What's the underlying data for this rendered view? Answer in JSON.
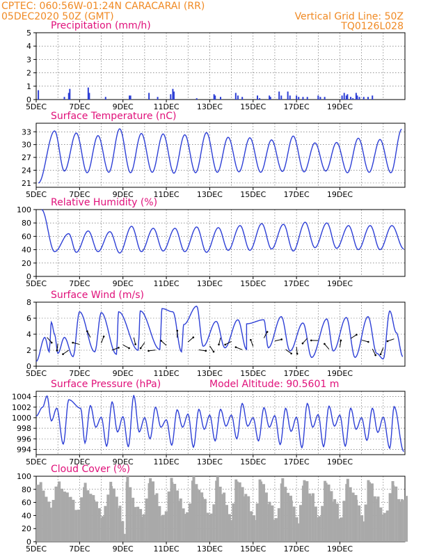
{
  "header": {
    "left_line1": "CPTEC:   060:56W-01:24N   CARACARAI (RR)",
    "left_line2": "05DEC2020 50Z (GMT)",
    "right_line1": "Vertical Grid Line: 50Z",
    "right_line2": "TQ0126L028"
  },
  "colors": {
    "header": "#f08a24",
    "title": "#e0107a",
    "series": "#2d3fd6",
    "cloud": "#a9a9a9"
  },
  "x_labels": [
    "5DEC",
    "7DEC",
    "9DEC",
    "11DEC",
    "13DEC",
    "15DEC",
    "17DEC",
    "19DEC"
  ],
  "chart_data": [
    {
      "id": "precip",
      "type": "bar",
      "title": "Precipitation (mm/h)",
      "ylim": [
        0,
        5
      ],
      "yticks": [
        0,
        1,
        2,
        3,
        4,
        5
      ],
      "points": [
        [
          0.1,
          0.7
        ],
        [
          1.3,
          0.2
        ],
        [
          1.5,
          0.5
        ],
        [
          1.55,
          0.8
        ],
        [
          2.4,
          0.9
        ],
        [
          2.45,
          0.5
        ],
        [
          3.2,
          0.2
        ],
        [
          4.3,
          0.3
        ],
        [
          4.35,
          0.3
        ],
        [
          5.2,
          0.5
        ],
        [
          5.6,
          0.2
        ],
        [
          6.2,
          0.4
        ],
        [
          6.3,
          0.8
        ],
        [
          6.35,
          0.6
        ],
        [
          7.4,
          0.1
        ],
        [
          8.2,
          0.4
        ],
        [
          8.25,
          0.3
        ],
        [
          8.5,
          0.2
        ],
        [
          9.2,
          0.5
        ],
        [
          9.3,
          0.3
        ],
        [
          9.5,
          0.2
        ],
        [
          10.2,
          0.3
        ],
        [
          10.3,
          0.1
        ],
        [
          10.75,
          0.3
        ],
        [
          10.8,
          0.2
        ],
        [
          11.2,
          0.6
        ],
        [
          11.3,
          0.3
        ],
        [
          11.6,
          0.6
        ],
        [
          11.7,
          0.3
        ],
        [
          12.0,
          0.3
        ],
        [
          12.1,
          0.2
        ],
        [
          12.3,
          0.2
        ],
        [
          12.5,
          0.2
        ],
        [
          13.0,
          0.3
        ],
        [
          13.1,
          0.2
        ],
        [
          13.3,
          0.2
        ],
        [
          14.1,
          0.3
        ],
        [
          14.2,
          0.5
        ],
        [
          14.3,
          0.3
        ],
        [
          14.35,
          0.4
        ],
        [
          14.5,
          0.2
        ],
        [
          14.6,
          0.1
        ],
        [
          14.75,
          0.5
        ],
        [
          14.8,
          0.3
        ],
        [
          14.9,
          0.2
        ],
        [
          15.1,
          0.2
        ],
        [
          15.3,
          0.2
        ],
        [
          15.5,
          0.3
        ]
      ],
      "series": [
        {
          "name": "",
          "values": []
        }
      ]
    },
    {
      "id": "temp",
      "type": "line",
      "title": "Surface Temperature (nC)",
      "ylim": [
        20,
        35
      ],
      "yticks": [
        21,
        24,
        27,
        30,
        33
      ],
      "min": [
        [
          0.1,
          21.0
        ],
        [
          1.3,
          23.8
        ],
        [
          2.35,
          23.4
        ],
        [
          3.35,
          23.5
        ],
        [
          4.35,
          23.4
        ],
        [
          5.35,
          23.5
        ],
        [
          6.35,
          23.3
        ],
        [
          7.35,
          23.4
        ],
        [
          8.35,
          23.5
        ],
        [
          9.35,
          23.6
        ],
        [
          10.35,
          23.5
        ],
        [
          11.35,
          23.7
        ],
        [
          12.35,
          23.6
        ],
        [
          13.35,
          23.8
        ],
        [
          14.35,
          23.4
        ],
        [
          15.35,
          23.5
        ],
        [
          16.35,
          23.4
        ]
      ],
      "max": [
        [
          0.85,
          33.2
        ],
        [
          1.85,
          32.7
        ],
        [
          2.85,
          32.1
        ],
        [
          3.85,
          33.7
        ],
        [
          4.85,
          32.6
        ],
        [
          5.85,
          32.5
        ],
        [
          6.85,
          32.3
        ],
        [
          7.85,
          32.8
        ],
        [
          8.85,
          31.7
        ],
        [
          9.85,
          31.6
        ],
        [
          10.85,
          31.1
        ],
        [
          11.85,
          32.0
        ],
        [
          12.85,
          30.4
        ],
        [
          13.85,
          30.5
        ],
        [
          14.85,
          31.5
        ],
        [
          15.85,
          31.2
        ],
        [
          16.85,
          33.6
        ]
      ],
      "series": [
        {
          "name": "",
          "values": []
        }
      ]
    },
    {
      "id": "rh",
      "type": "line",
      "title": "Relative Humidity (%)",
      "ylim": [
        0,
        100
      ],
      "yticks": [
        0,
        20,
        40,
        60,
        80,
        100
      ],
      "min": [
        [
          0.85,
          37
        ],
        [
          1.85,
          36
        ],
        [
          2.85,
          37
        ],
        [
          3.85,
          35
        ],
        [
          4.85,
          37
        ],
        [
          5.85,
          38
        ],
        [
          6.85,
          37
        ],
        [
          7.85,
          36
        ],
        [
          8.85,
          39
        ],
        [
          9.85,
          39
        ],
        [
          10.85,
          41
        ],
        [
          11.85,
          38
        ],
        [
          12.85,
          43
        ],
        [
          13.85,
          42
        ],
        [
          14.85,
          40
        ],
        [
          15.85,
          40
        ],
        [
          16.95,
          41
        ]
      ],
      "max": [
        [
          0.25,
          100
        ],
        [
          1.5,
          64
        ],
        [
          2.4,
          68
        ],
        [
          3.4,
          67
        ],
        [
          4.4,
          75
        ],
        [
          5.4,
          72
        ],
        [
          6.4,
          72
        ],
        [
          7.4,
          74
        ],
        [
          8.4,
          73
        ],
        [
          9.4,
          76
        ],
        [
          10.4,
          79
        ],
        [
          11.4,
          78
        ],
        [
          12.4,
          81
        ],
        [
          13.4,
          80
        ],
        [
          14.4,
          76
        ],
        [
          15.4,
          76
        ],
        [
          16.4,
          76
        ]
      ],
      "series": [
        {
          "name": "",
          "values": []
        }
      ]
    },
    {
      "id": "wind",
      "type": "line",
      "title": "Surface Wind (m/s)",
      "ylim": [
        0,
        8
      ],
      "yticks": [
        0,
        2,
        4,
        6,
        8
      ],
      "min": [
        [
          0.0,
          0.6
        ],
        [
          0.6,
          1.8
        ],
        [
          1.0,
          1.6
        ],
        [
          1.7,
          1.2
        ],
        [
          2.7,
          1.8
        ],
        [
          3.7,
          1.5
        ],
        [
          4.7,
          2.0
        ],
        [
          5.7,
          2.1
        ],
        [
          6.7,
          1.8
        ],
        [
          7.7,
          2.5
        ],
        [
          8.7,
          2.3
        ],
        [
          9.7,
          2.1
        ],
        [
          10.7,
          2.3
        ],
        [
          11.7,
          1.9
        ],
        [
          12.7,
          1.1
        ],
        [
          13.7,
          1.9
        ],
        [
          14.7,
          1.1
        ],
        [
          15.7,
          1.6
        ],
        [
          16.0,
          0.9
        ],
        [
          16.9,
          1.2
        ]
      ],
      "max": [
        [
          0.4,
          3.6
        ],
        [
          0.7,
          5.5
        ],
        [
          0.85,
          4.0
        ],
        [
          1.3,
          3.6
        ],
        [
          2.0,
          6.8
        ],
        [
          3.0,
          6.7
        ],
        [
          3.8,
          6.8
        ],
        [
          4.8,
          6.9
        ],
        [
          5.8,
          7.2
        ],
        [
          6.3,
          6.8
        ],
        [
          6.8,
          5.2
        ],
        [
          7.4,
          7.5
        ],
        [
          8.3,
          5.6
        ],
        [
          9.3,
          5.8
        ],
        [
          9.7,
          5.3
        ],
        [
          10.5,
          5.8
        ],
        [
          11.3,
          6.2
        ],
        [
          12.3,
          5.4
        ],
        [
          13.4,
          5.9
        ],
        [
          14.3,
          6.1
        ],
        [
          15.3,
          6.2
        ],
        [
          16.3,
          6.9
        ],
        [
          16.6,
          4.2
        ]
      ],
      "series": [
        {
          "name": "",
          "values": []
        }
      ]
    },
    {
      "id": "pressure",
      "type": "line",
      "title": "Surface Pressure (hPa)",
      "note": "Model Altitude: 90.5601 m",
      "ylim": [
        993,
        1005
      ],
      "yticks": [
        994,
        996,
        998,
        1000,
        1002,
        1004
      ],
      "min": [
        [
          0.0,
          1000.3
        ],
        [
          0.7,
          999.4
        ],
        [
          1.25,
          995.0
        ],
        [
          2.25,
          995.2
        ],
        [
          2.75,
          998.2
        ],
        [
          3.25,
          994.6
        ],
        [
          3.75,
          997.3
        ],
        [
          4.25,
          994.5
        ],
        [
          4.75,
          997.3
        ],
        [
          5.25,
          996.0
        ],
        [
          5.75,
          998.2
        ],
        [
          6.25,
          994.8
        ],
        [
          6.75,
          998.2
        ],
        [
          7.25,
          994.4
        ],
        [
          7.75,
          997.8
        ],
        [
          8.25,
          995.6
        ],
        [
          8.75,
          998.4
        ],
        [
          9.25,
          996.0
        ],
        [
          9.75,
          998.4
        ],
        [
          10.25,
          995.6
        ],
        [
          10.75,
          998.2
        ],
        [
          11.25,
          994.9
        ],
        [
          11.75,
          997.4
        ],
        [
          12.25,
          994.3
        ],
        [
          12.75,
          998.2
        ],
        [
          13.25,
          994.5
        ],
        [
          13.75,
          998.4
        ],
        [
          14.25,
          994.6
        ],
        [
          14.75,
          997.8
        ],
        [
          15.25,
          995.7
        ],
        [
          15.75,
          997.2
        ],
        [
          16.3,
          994.2
        ],
        [
          16.95,
          993.6
        ]
      ],
      "max": [
        [
          0.3,
          1002.0
        ],
        [
          0.5,
          1004.1
        ],
        [
          0.95,
          1001.8
        ],
        [
          1.5,
          1003.4
        ],
        [
          2.05,
          1001.8
        ],
        [
          2.5,
          1002.3
        ],
        [
          3.0,
          1000.1
        ],
        [
          3.5,
          1003.0
        ],
        [
          4.0,
          1000.2
        ],
        [
          4.5,
          1004.2
        ],
        [
          5.0,
          1000.0
        ],
        [
          5.5,
          1002.0
        ],
        [
          6.0,
          999.6
        ],
        [
          6.5,
          1001.5
        ],
        [
          7.0,
          1000.7
        ],
        [
          7.5,
          1001.6
        ],
        [
          8.0,
          1000.5
        ],
        [
          8.5,
          1001.6
        ],
        [
          9.0,
          1000.5
        ],
        [
          9.5,
          1002.7
        ],
        [
          10.0,
          1000.0
        ],
        [
          10.5,
          1001.9
        ],
        [
          11.0,
          1000.4
        ],
        [
          11.5,
          1001.8
        ],
        [
          12.0,
          1000.1
        ],
        [
          12.5,
          1002.7
        ],
        [
          13.0,
          1000.6
        ],
        [
          13.5,
          1002.2
        ],
        [
          14.0,
          1000.5
        ],
        [
          14.5,
          1001.8
        ],
        [
          15.0,
          1000.0
        ],
        [
          15.5,
          1001.8
        ],
        [
          16.0,
          1000.1
        ],
        [
          16.5,
          1002.1
        ]
      ],
      "series": [
        {
          "name": "",
          "values": []
        }
      ]
    },
    {
      "id": "cloud",
      "type": "bar",
      "title": "Cloud Cover (%)",
      "ylim": [
        0,
        100
      ],
      "yticks": [
        0,
        20,
        40,
        60,
        80,
        100
      ],
      "levels": [
        [
          0.0,
          92
        ],
        [
          0.15,
          88
        ],
        [
          0.6,
          55
        ],
        [
          1.0,
          90
        ],
        [
          1.4,
          72
        ],
        [
          1.9,
          48
        ],
        [
          2.2,
          88
        ],
        [
          2.6,
          68
        ],
        [
          3.0,
          38
        ],
        [
          3.4,
          90
        ],
        [
          3.8,
          55
        ],
        [
          4.0,
          15
        ],
        [
          4.15,
          96
        ],
        [
          4.5,
          58
        ],
        [
          4.9,
          42
        ],
        [
          5.2,
          96
        ],
        [
          5.5,
          72
        ],
        [
          5.8,
          38
        ],
        [
          6.2,
          94
        ],
        [
          6.6,
          64
        ],
        [
          6.9,
          42
        ],
        [
          7.2,
          97
        ],
        [
          7.6,
          70
        ],
        [
          8.0,
          40
        ],
        [
          8.3,
          97
        ],
        [
          8.6,
          70
        ],
        [
          8.9,
          38
        ],
        [
          9.2,
          96
        ],
        [
          9.6,
          72
        ],
        [
          10.0,
          38
        ],
        [
          10.3,
          96
        ],
        [
          10.7,
          60
        ],
        [
          11.0,
          34
        ],
        [
          11.3,
          94
        ],
        [
          11.7,
          66
        ],
        [
          12.0,
          30
        ],
        [
          12.3,
          95
        ],
        [
          12.7,
          70
        ],
        [
          13.0,
          34
        ],
        [
          13.3,
          95
        ],
        [
          13.7,
          65
        ],
        [
          14.0,
          36
        ],
        [
          14.3,
          94
        ],
        [
          14.7,
          68
        ],
        [
          15.0,
          34
        ],
        [
          15.3,
          93
        ],
        [
          15.7,
          66
        ],
        [
          16.0,
          40
        ],
        [
          16.4,
          88
        ],
        [
          16.8,
          62
        ],
        [
          17.0,
          70
        ]
      ],
      "series": [
        {
          "name": "",
          "values": []
        }
      ]
    }
  ]
}
